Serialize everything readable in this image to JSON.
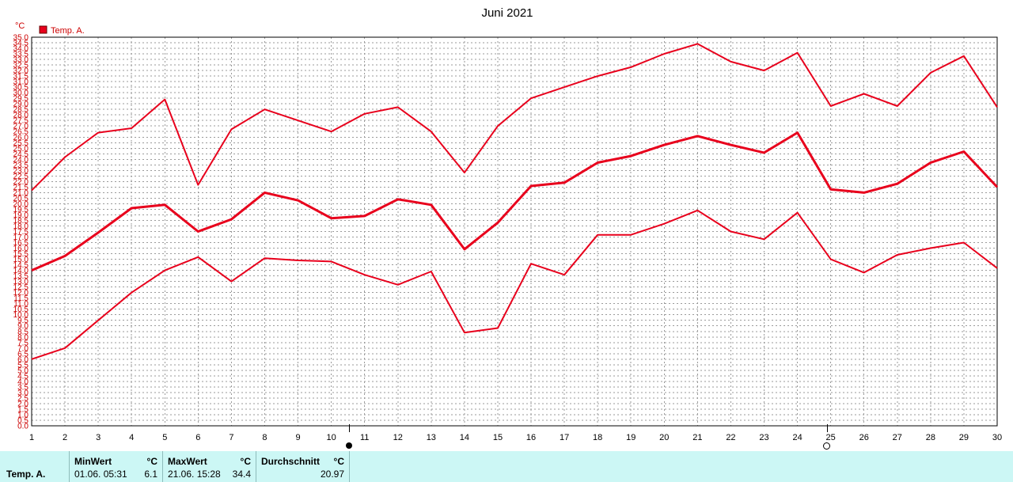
{
  "chart_data": {
    "type": "line",
    "title": "Juni 2021",
    "unit_label": "°C",
    "legend": [
      "Temp. A."
    ],
    "legend_placement": "top-left",
    "grid": true,
    "ylim": [
      0,
      35
    ],
    "y_step": 0.5,
    "x": [
      1,
      2,
      3,
      4,
      5,
      6,
      7,
      8,
      9,
      10,
      11,
      12,
      13,
      14,
      15,
      16,
      17,
      18,
      19,
      20,
      21,
      22,
      23,
      24,
      25,
      26,
      27,
      28,
      29,
      30
    ],
    "series": [
      {
        "role": "max",
        "color": "#e8001c",
        "values": [
          21.2,
          24.2,
          26.4,
          26.8,
          29.4,
          21.7,
          26.7,
          28.5,
          27.5,
          26.5,
          28.1,
          28.7,
          26.5,
          22.8,
          27.0,
          29.5,
          30.5,
          31.5,
          32.3,
          33.5,
          34.4,
          32.8,
          32.0,
          33.6,
          28.8,
          29.9,
          28.8,
          31.8,
          33.3,
          28.7
        ]
      },
      {
        "role": "mean",
        "color": "#e8001c",
        "values": [
          14.0,
          15.3,
          17.4,
          19.6,
          19.9,
          17.5,
          18.6,
          21.0,
          20.3,
          18.7,
          18.9,
          20.4,
          19.9,
          15.9,
          18.3,
          21.6,
          21.9,
          23.7,
          24.3,
          25.3,
          26.1,
          25.3,
          24.6,
          26.4,
          21.3,
          21.0,
          21.8,
          23.7,
          24.7,
          21.5
        ]
      },
      {
        "role": "min",
        "color": "#e8001c",
        "values": [
          6.0,
          7.0,
          9.5,
          12.0,
          14.0,
          15.2,
          13.0,
          15.1,
          14.9,
          14.8,
          13.6,
          12.7,
          13.9,
          8.4,
          8.8,
          14.6,
          13.6,
          17.2,
          17.2,
          18.2,
          19.4,
          17.5,
          16.8,
          19.2,
          15.0,
          13.8,
          15.4,
          16.0,
          16.5,
          14.2
        ]
      }
    ]
  },
  "markers": [
    {
      "day": 10.5,
      "style": "filled"
    },
    {
      "day": 24.9,
      "style": "open"
    }
  ],
  "stats": {
    "series_label": "Temp. A.",
    "min_header": "MinWert",
    "min_unit": "°C",
    "min_time": "01.06.  05:31",
    "min_value": "6.1",
    "max_header": "MaxWert",
    "max_unit": "°C",
    "max_time": "21.06.  15:28",
    "max_value": "34.4",
    "avg_header": "Durchschnitt",
    "avg_unit": "°C",
    "avg_value": "20.97"
  }
}
